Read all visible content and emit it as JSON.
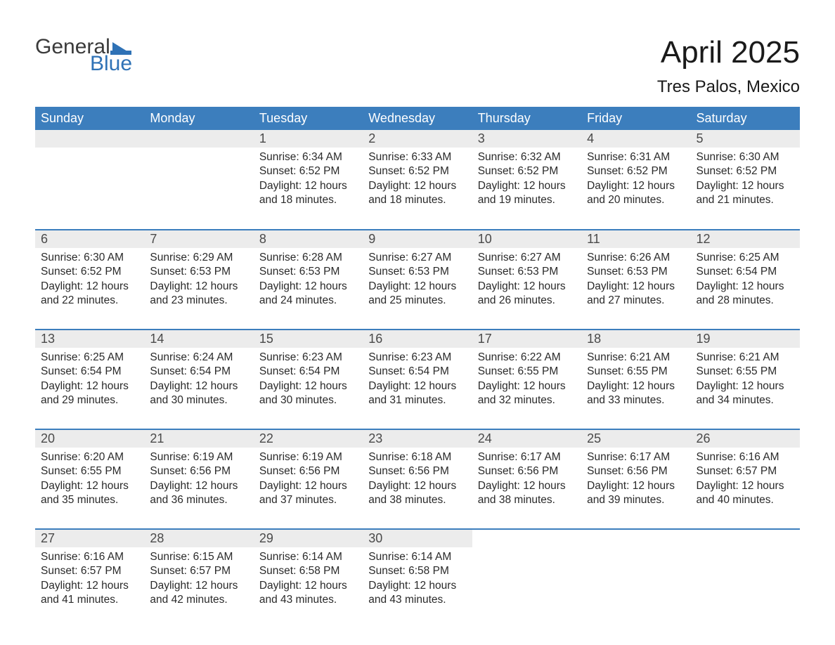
{
  "brand": {
    "text1": "General",
    "text2": "Blue",
    "color": "#2f72b6"
  },
  "title": "April 2025",
  "location": "Tres Palos, Mexico",
  "colors": {
    "header_bg": "#3c7ebd",
    "header_text": "#ffffff",
    "daybar_bg": "#ececec",
    "border": "#3c7ebd",
    "body_text": "#2a2a2a"
  },
  "weekdays": [
    "Sunday",
    "Monday",
    "Tuesday",
    "Wednesday",
    "Thursday",
    "Friday",
    "Saturday"
  ],
  "weeks": [
    [
      null,
      null,
      {
        "d": "1",
        "sr": "6:34 AM",
        "ss": "6:52 PM",
        "dl": "12 hours and 18 minutes."
      },
      {
        "d": "2",
        "sr": "6:33 AM",
        "ss": "6:52 PM",
        "dl": "12 hours and 18 minutes."
      },
      {
        "d": "3",
        "sr": "6:32 AM",
        "ss": "6:52 PM",
        "dl": "12 hours and 19 minutes."
      },
      {
        "d": "4",
        "sr": "6:31 AM",
        "ss": "6:52 PM",
        "dl": "12 hours and 20 minutes."
      },
      {
        "d": "5",
        "sr": "6:30 AM",
        "ss": "6:52 PM",
        "dl": "12 hours and 21 minutes."
      }
    ],
    [
      {
        "d": "6",
        "sr": "6:30 AM",
        "ss": "6:52 PM",
        "dl": "12 hours and 22 minutes."
      },
      {
        "d": "7",
        "sr": "6:29 AM",
        "ss": "6:53 PM",
        "dl": "12 hours and 23 minutes."
      },
      {
        "d": "8",
        "sr": "6:28 AM",
        "ss": "6:53 PM",
        "dl": "12 hours and 24 minutes."
      },
      {
        "d": "9",
        "sr": "6:27 AM",
        "ss": "6:53 PM",
        "dl": "12 hours and 25 minutes."
      },
      {
        "d": "10",
        "sr": "6:27 AM",
        "ss": "6:53 PM",
        "dl": "12 hours and 26 minutes."
      },
      {
        "d": "11",
        "sr": "6:26 AM",
        "ss": "6:53 PM",
        "dl": "12 hours and 27 minutes."
      },
      {
        "d": "12",
        "sr": "6:25 AM",
        "ss": "6:54 PM",
        "dl": "12 hours and 28 minutes."
      }
    ],
    [
      {
        "d": "13",
        "sr": "6:25 AM",
        "ss": "6:54 PM",
        "dl": "12 hours and 29 minutes."
      },
      {
        "d": "14",
        "sr": "6:24 AM",
        "ss": "6:54 PM",
        "dl": "12 hours and 30 minutes."
      },
      {
        "d": "15",
        "sr": "6:23 AM",
        "ss": "6:54 PM",
        "dl": "12 hours and 30 minutes."
      },
      {
        "d": "16",
        "sr": "6:23 AM",
        "ss": "6:54 PM",
        "dl": "12 hours and 31 minutes."
      },
      {
        "d": "17",
        "sr": "6:22 AM",
        "ss": "6:55 PM",
        "dl": "12 hours and 32 minutes."
      },
      {
        "d": "18",
        "sr": "6:21 AM",
        "ss": "6:55 PM",
        "dl": "12 hours and 33 minutes."
      },
      {
        "d": "19",
        "sr": "6:21 AM",
        "ss": "6:55 PM",
        "dl": "12 hours and 34 minutes."
      }
    ],
    [
      {
        "d": "20",
        "sr": "6:20 AM",
        "ss": "6:55 PM",
        "dl": "12 hours and 35 minutes."
      },
      {
        "d": "21",
        "sr": "6:19 AM",
        "ss": "6:56 PM",
        "dl": "12 hours and 36 minutes."
      },
      {
        "d": "22",
        "sr": "6:19 AM",
        "ss": "6:56 PM",
        "dl": "12 hours and 37 minutes."
      },
      {
        "d": "23",
        "sr": "6:18 AM",
        "ss": "6:56 PM",
        "dl": "12 hours and 38 minutes."
      },
      {
        "d": "24",
        "sr": "6:17 AM",
        "ss": "6:56 PM",
        "dl": "12 hours and 38 minutes."
      },
      {
        "d": "25",
        "sr": "6:17 AM",
        "ss": "6:56 PM",
        "dl": "12 hours and 39 minutes."
      },
      {
        "d": "26",
        "sr": "6:16 AM",
        "ss": "6:57 PM",
        "dl": "12 hours and 40 minutes."
      }
    ],
    [
      {
        "d": "27",
        "sr": "6:16 AM",
        "ss": "6:57 PM",
        "dl": "12 hours and 41 minutes."
      },
      {
        "d": "28",
        "sr": "6:15 AM",
        "ss": "6:57 PM",
        "dl": "12 hours and 42 minutes."
      },
      {
        "d": "29",
        "sr": "6:14 AM",
        "ss": "6:58 PM",
        "dl": "12 hours and 43 minutes."
      },
      {
        "d": "30",
        "sr": "6:14 AM",
        "ss": "6:58 PM",
        "dl": "12 hours and 43 minutes."
      },
      null,
      null,
      null
    ]
  ],
  "labels": {
    "sunrise": "Sunrise: ",
    "sunset": "Sunset: ",
    "daylight": "Daylight: "
  }
}
